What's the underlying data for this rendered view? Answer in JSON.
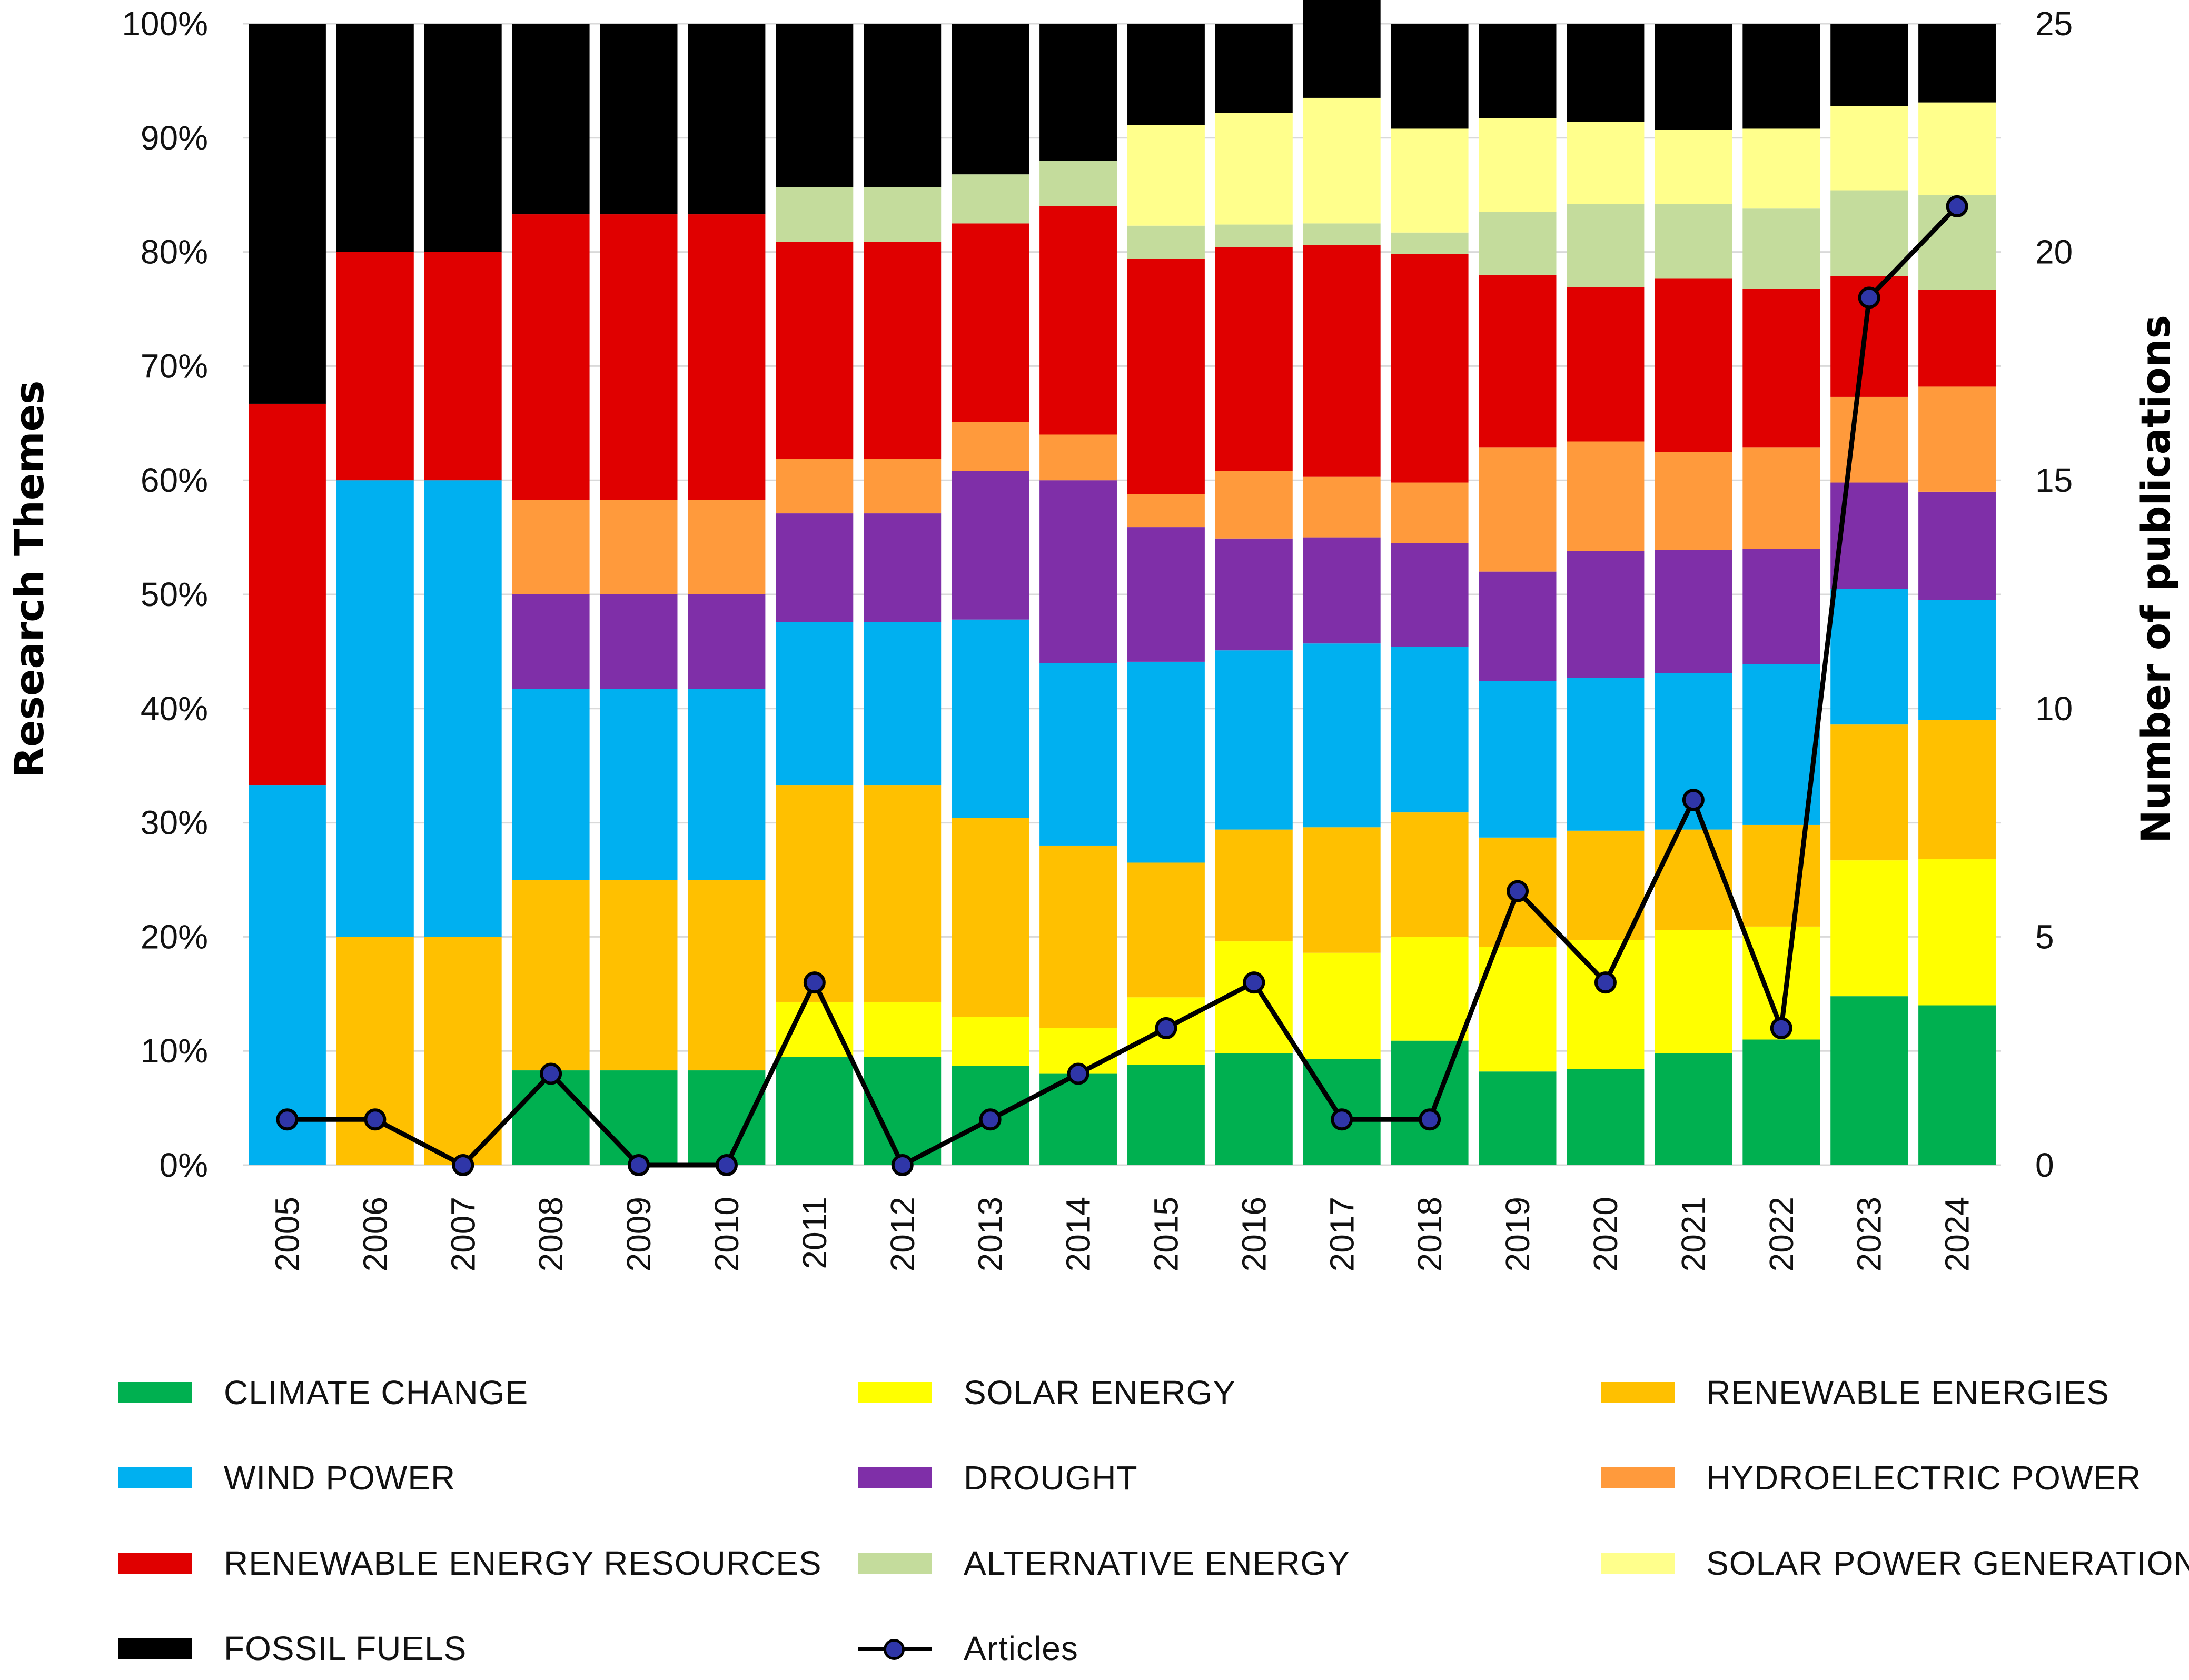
{
  "chart_data": {
    "type": "bar",
    "stacked": true,
    "title": "",
    "categories": [
      "2005",
      "2006",
      "2007",
      "2008",
      "2009",
      "2010",
      "2011",
      "2012",
      "2013",
      "2014",
      "2015",
      "2016",
      "2017",
      "2018",
      "2019",
      "2020",
      "2021",
      "2022",
      "2023",
      "2024"
    ],
    "y_left": {
      "label": "Research Themes",
      "ticks": [
        "0%",
        "10%",
        "20%",
        "30%",
        "40%",
        "50%",
        "60%",
        "70%",
        "80%",
        "90%",
        "100%"
      ],
      "range": [
        0,
        100
      ]
    },
    "y_right": {
      "label": "Number of publications",
      "ticks": [
        "0",
        "5",
        "10",
        "15",
        "20",
        "25"
      ],
      "range": [
        0,
        25
      ]
    },
    "series": [
      {
        "name": "CLIMATE CHANGE",
        "color": "#00b050",
        "values": [
          0,
          0,
          0,
          8.3,
          8.3,
          8.3,
          9.5,
          9.5,
          8.7,
          8.0,
          8.8,
          9.8,
          9.3,
          10.9,
          8.2,
          8.4,
          9.8,
          11.0,
          14.8,
          14.0
        ]
      },
      {
        "name": "SOLAR ENERGY",
        "color": "#ffff00",
        "values": [
          0,
          0,
          0,
          0,
          0,
          0,
          4.8,
          4.8,
          4.3,
          4.0,
          5.9,
          9.8,
          9.3,
          9.1,
          10.9,
          11.3,
          10.8,
          9.9,
          11.9,
          12.8
        ]
      },
      {
        "name": "RENEWABLE ENERGIES",
        "color": "#ffc000",
        "values": [
          0,
          20,
          20,
          16.7,
          16.7,
          16.7,
          19.0,
          19.0,
          17.4,
          16.0,
          11.8,
          9.8,
          11.0,
          10.9,
          9.6,
          9.6,
          8.8,
          8.9,
          11.9,
          12.2
        ]
      },
      {
        "name": "WIND POWER",
        "color": "#00b0f0",
        "values": [
          33.3,
          40,
          40,
          16.7,
          16.7,
          16.7,
          14.3,
          14.3,
          17.4,
          16.0,
          17.6,
          15.7,
          16.1,
          14.5,
          13.7,
          13.4,
          13.7,
          14.1,
          11.9,
          10.5
        ]
      },
      {
        "name": "DROUGHT",
        "color": "#7f2fa8",
        "values": [
          0,
          0,
          0,
          8.3,
          8.3,
          8.3,
          9.5,
          9.5,
          13.0,
          16.0,
          11.8,
          9.8,
          9.3,
          9.1,
          9.6,
          11.1,
          10.8,
          10.1,
          9.3,
          9.5
        ]
      },
      {
        "name": "HYDROELECTRIC POWER",
        "color": "#ff9a3c",
        "values": [
          0,
          0,
          0,
          8.3,
          8.3,
          8.3,
          4.8,
          4.8,
          4.3,
          4.0,
          2.9,
          5.9,
          5.3,
          5.3,
          10.9,
          9.6,
          8.6,
          8.9,
          7.5,
          9.2
        ]
      },
      {
        "name": "RENEWABLE ENERGY RESOURCES",
        "color": "#e00000",
        "values": [
          33.4,
          20,
          20,
          25.0,
          25.0,
          25.0,
          19.0,
          19.0,
          17.4,
          20.0,
          20.6,
          19.6,
          20.3,
          20.0,
          15.1,
          13.5,
          15.2,
          13.9,
          10.6,
          8.5
        ]
      },
      {
        "name": "ALTERNATIVE ENERGY",
        "color": "#c4dc9c",
        "values": [
          0,
          0,
          0,
          0,
          0,
          0,
          4.8,
          4.8,
          4.3,
          4.0,
          2.9,
          2.0,
          1.9,
          1.9,
          5.5,
          7.3,
          6.5,
          7.0,
          7.5,
          8.3
        ]
      },
      {
        "name": "SOLAR POWER GENERATION",
        "color": "#ffff8c",
        "values": [
          0,
          0,
          0,
          0,
          0,
          0,
          0,
          0,
          0,
          0,
          8.8,
          9.8,
          11.0,
          9.1,
          8.2,
          7.2,
          6.5,
          7.0,
          7.4,
          8.1
        ]
      },
      {
        "name": "FOSSIL FUELS",
        "color": "#000000",
        "values": [
          33.3,
          20,
          20,
          16.7,
          16.7,
          16.7,
          14.3,
          14.3,
          13.2,
          12.0,
          8.9,
          7.8,
          9.5,
          9.2,
          8.3,
          8.6,
          9.3,
          9.2,
          7.2,
          6.9
        ]
      }
    ],
    "line_series": {
      "name": "Articles",
      "axis": "right",
      "color": "#000000",
      "marker_color": "#2f36a8",
      "values": [
        1,
        1,
        0,
        2,
        0,
        0,
        4,
        0,
        1,
        2,
        3,
        4,
        1,
        1,
        6,
        4,
        8,
        3,
        19,
        21
      ]
    },
    "legend": [
      {
        "label": "CLIMATE CHANGE",
        "color": "#00b050",
        "kind": "swatch"
      },
      {
        "label": "SOLAR ENERGY",
        "color": "#ffff00",
        "kind": "swatch"
      },
      {
        "label": "RENEWABLE ENERGIES",
        "color": "#ffc000",
        "kind": "swatch"
      },
      {
        "label": "WIND POWER",
        "color": "#00b0f0",
        "kind": "swatch"
      },
      {
        "label": "DROUGHT",
        "color": "#7f2fa8",
        "kind": "swatch"
      },
      {
        "label": "HYDROELECTRIC POWER",
        "color": "#ff9a3c",
        "kind": "swatch"
      },
      {
        "label": "RENEWABLE ENERGY RESOURCES",
        "color": "#e00000",
        "kind": "swatch"
      },
      {
        "label": "ALTERNATIVE ENERGY",
        "color": "#c4dc9c",
        "kind": "swatch"
      },
      {
        "label": "SOLAR POWER GENERATION",
        "color": "#ffff8c",
        "kind": "swatch"
      },
      {
        "label": "FOSSIL FUELS",
        "color": "#000000",
        "kind": "swatch"
      },
      {
        "label": "Articles",
        "color": "#000000",
        "kind": "line"
      }
    ],
    "legend_position": "bottom",
    "grid": true
  }
}
